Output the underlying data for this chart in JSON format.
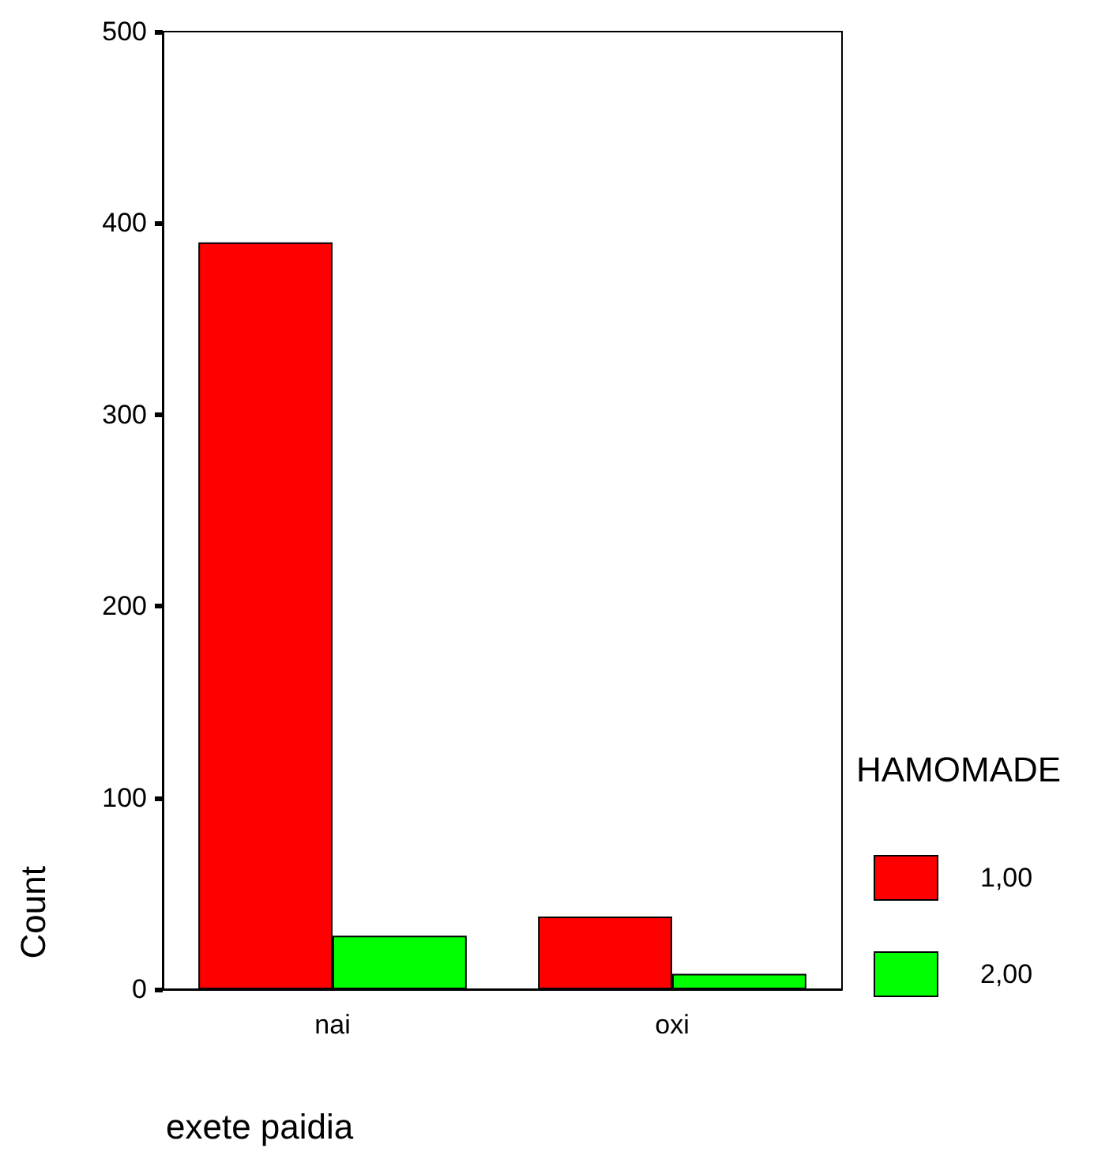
{
  "chart_data": {
    "type": "bar",
    "xlabel": "exete paidia",
    "ylabel": "Count",
    "legend_title": "HAMOMADE",
    "categories": [
      "nai",
      "oxi"
    ],
    "series": [
      {
        "name": "1,00",
        "color": "#ff0000",
        "values": [
          390,
          38
        ]
      },
      {
        "name": "2,00",
        "color": "#00ff00",
        "values": [
          28,
          8
        ]
      }
    ],
    "ylim": [
      0,
      500
    ],
    "yticks": [
      0,
      100,
      200,
      300,
      400,
      500
    ],
    "grid": false,
    "legend": "right"
  }
}
